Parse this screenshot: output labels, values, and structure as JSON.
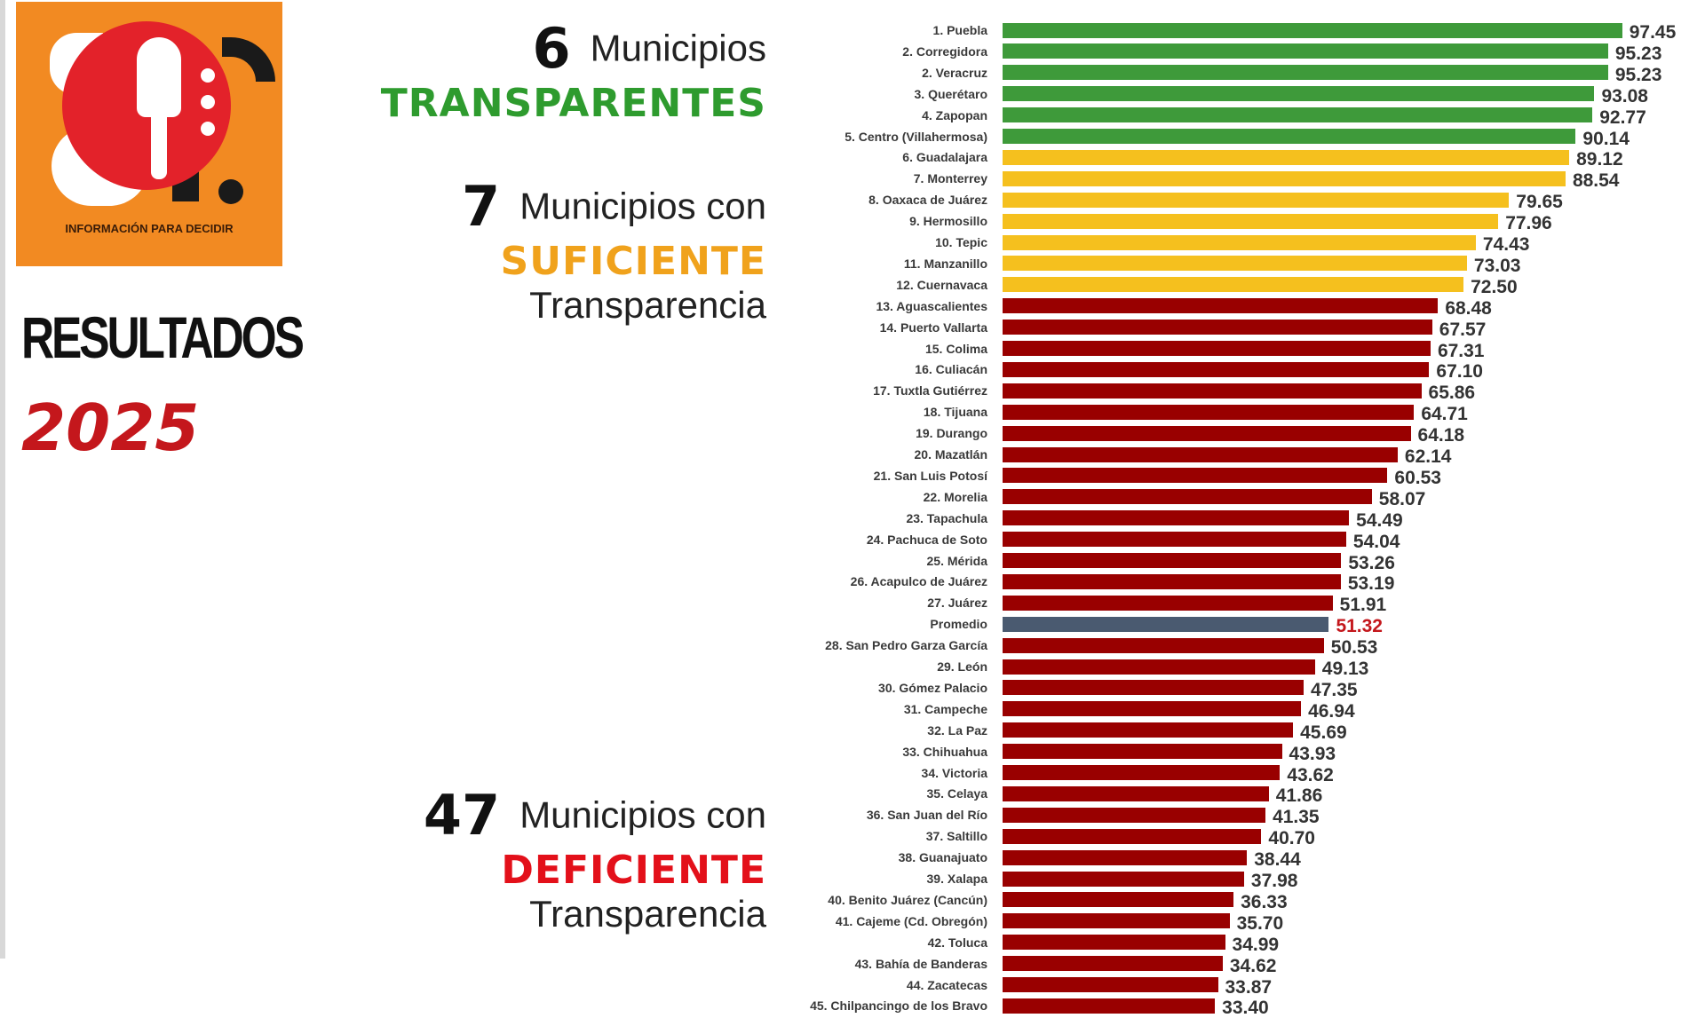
{
  "logo": {
    "tagline": "INFORMACIÓN PARA DECIDIR",
    "colors": {
      "background": "#f28a22",
      "circle": "#e3222a"
    }
  },
  "heading": {
    "resultados": "RESULTADOS",
    "year": "2025"
  },
  "groups": [
    {
      "count": "6",
      "prefix": "Municipios",
      "category": "TRANSPARENTES",
      "suffix": "",
      "color": "#2e9b2e"
    },
    {
      "count": "7",
      "prefix": "Municipios con",
      "category": "SUFICIENTE",
      "suffix": "Transparencia",
      "color": "#f0a21c"
    },
    {
      "count": "47",
      "prefix": "Municipios con",
      "category": "DEFICIENTE",
      "suffix": "Transparencia",
      "color": "#e3101a"
    }
  ],
  "chart_data": {
    "type": "bar",
    "orientation": "horizontal",
    "xlim": [
      0,
      100
    ],
    "grid": false,
    "colors": {
      "transparente": "#3e9a3a",
      "suficiente": "#f5c01e",
      "deficiente": "#990000",
      "promedio": "#4a5a70",
      "promedio_value": "#c4171c"
    },
    "categories": [
      "1. Puebla",
      "2. Corregidora",
      "2. Veracruz",
      "3. Querétaro",
      "4. Zapopan",
      "5. Centro (Villahermosa)",
      "6. Guadalajara",
      "7. Monterrey",
      "8. Oaxaca de Juárez",
      "9. Hermosillo",
      "10. Tepic",
      "11. Manzanillo",
      "12. Cuernavaca",
      "13. Aguascalientes",
      "14. Puerto Vallarta",
      "15. Colima",
      "16. Culiacán",
      "17. Tuxtla Gutiérrez",
      "18. Tijuana",
      "19. Durango",
      "20. Mazatlán",
      "21. San Luis Potosí",
      "22. Morelia",
      "23. Tapachula",
      "24. Pachuca de Soto",
      "25. Mérida",
      "26. Acapulco de Juárez",
      "27. Juárez",
      "Promedio",
      "28. San Pedro Garza García",
      "29. León",
      "30. Gómez Palacio",
      "31. Campeche",
      "32. La Paz",
      "33. Chihuahua",
      "34. Victoria",
      "35. Celaya",
      "36. San Juan del Río",
      "37. Saltillo",
      "38. Guanajuato",
      "39. Xalapa",
      "40. Benito Juárez (Cancún)",
      "41. Cajeme (Cd. Obregón)",
      "42. Toluca",
      "43. Bahía de Banderas",
      "44. Zacatecas",
      "45. Chilpancingo de los Bravo"
    ],
    "values": [
      97.45,
      95.23,
      95.23,
      93.08,
      92.77,
      90.14,
      89.12,
      88.54,
      79.65,
      77.96,
      74.43,
      73.03,
      72.5,
      68.48,
      67.57,
      67.31,
      67.1,
      65.86,
      64.71,
      64.18,
      62.14,
      60.53,
      58.07,
      54.49,
      54.04,
      53.26,
      53.19,
      51.91,
      51.32,
      50.53,
      49.13,
      47.35,
      46.94,
      45.69,
      43.93,
      43.62,
      41.86,
      41.35,
      40.7,
      38.44,
      37.98,
      36.33,
      35.7,
      34.99,
      34.62,
      33.87,
      33.4
    ],
    "value_labels": [
      "97.45",
      "95.23",
      "95.23",
      "93.08",
      "92.77",
      "90.14",
      "89.12",
      "88.54",
      "79.65",
      "77.96",
      "74.43",
      "73.03",
      "72.50",
      "68.48",
      "67.57",
      "67.31",
      "67.10",
      "65.86",
      "64.71",
      "64.18",
      "62.14",
      "60.53",
      "58.07",
      "54.49",
      "54.04",
      "53.26",
      "53.19",
      "51.91",
      "51.32",
      "50.53",
      "49.13",
      "47.35",
      "46.94",
      "45.69",
      "43.93",
      "43.62",
      "41.86",
      "41.35",
      "40.70",
      "38.44",
      "37.98",
      "36.33",
      "35.70",
      "34.99",
      "34.62",
      "33.87",
      "33.40"
    ],
    "groups": [
      "transparente",
      "transparente",
      "transparente",
      "transparente",
      "transparente",
      "transparente",
      "suficiente",
      "suficiente",
      "suficiente",
      "suficiente",
      "suficiente",
      "suficiente",
      "suficiente",
      "deficiente",
      "deficiente",
      "deficiente",
      "deficiente",
      "deficiente",
      "deficiente",
      "deficiente",
      "deficiente",
      "deficiente",
      "deficiente",
      "deficiente",
      "deficiente",
      "deficiente",
      "deficiente",
      "deficiente",
      "promedio",
      "deficiente",
      "deficiente",
      "deficiente",
      "deficiente",
      "deficiente",
      "deficiente",
      "deficiente",
      "deficiente",
      "deficiente",
      "deficiente",
      "deficiente",
      "deficiente",
      "deficiente",
      "deficiente",
      "deficiente",
      "deficiente",
      "deficiente",
      "deficiente"
    ]
  }
}
